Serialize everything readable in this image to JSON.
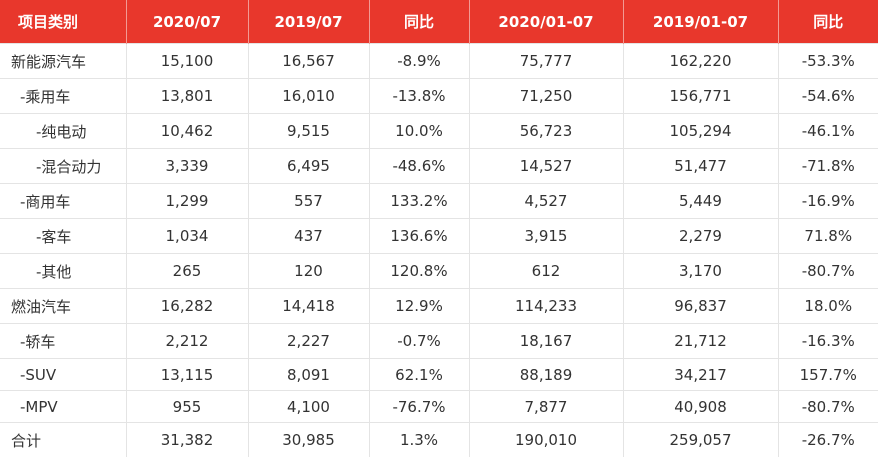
{
  "header": {
    "col0": "项目类别",
    "col1": "2020/07",
    "col2": "2019/07",
    "col3": "同比",
    "col4": "2020/01-07",
    "col5": "2019/01-07",
    "col6": "同比"
  },
  "rows": [
    {
      "label": "新能源汽车",
      "v1": "15,100",
      "v2": "16,567",
      "v3": "-8.9%",
      "v4": "75,777",
      "v5": "162,220",
      "v6": "-53.3%"
    },
    {
      "label": "-乘用车",
      "v1": "13,801",
      "v2": "16,010",
      "v3": "-13.8%",
      "v4": "71,250",
      "v5": "156,771",
      "v6": "-54.6%"
    },
    {
      "label": "-纯电动",
      "v1": "10,462",
      "v2": "9,515",
      "v3": "10.0%",
      "v4": "56,723",
      "v5": "105,294",
      "v6": "-46.1%"
    },
    {
      "label": "-混合动力",
      "v1": "3,339",
      "v2": "6,495",
      "v3": "-48.6%",
      "v4": "14,527",
      "v5": "51,477",
      "v6": "-71.8%"
    },
    {
      "label": "-商用车",
      "v1": "1,299",
      "v2": "557",
      "v3": "133.2%",
      "v4": "4,527",
      "v5": "5,449",
      "v6": "-16.9%"
    },
    {
      "label": "-客车",
      "v1": "1,034",
      "v2": "437",
      "v3": "136.6%",
      "v4": "3,915",
      "v5": "2,279",
      "v6": "71.8%"
    },
    {
      "label": "-其他",
      "v1": "265",
      "v2": "120",
      "v3": "120.8%",
      "v4": "612",
      "v5": "3,170",
      "v6": "-80.7%"
    },
    {
      "label": "燃油汽车",
      "v1": "16,282",
      "v2": "14,418",
      "v3": "12.9%",
      "v4": "114,233",
      "v5": "96,837",
      "v6": "18.0%"
    },
    {
      "label": "-轿车",
      "v1": "2,212",
      "v2": "2,227",
      "v3": "-0.7%",
      "v4": "18,167",
      "v5": "21,712",
      "v6": "-16.3%"
    },
    {
      "label": "-SUV",
      "v1": "13,115",
      "v2": "8,091",
      "v3": "62.1%",
      "v4": "88,189",
      "v5": "34,217",
      "v6": "157.7%"
    },
    {
      "label": "-MPV",
      "v1": "955",
      "v2": "4,100",
      "v3": "-76.7%",
      "v4": "7,877",
      "v5": "40,908",
      "v6": "-80.7%"
    },
    {
      "label": "合计",
      "v1": "31,382",
      "v2": "30,985",
      "v3": "1.3%",
      "v4": "190,010",
      "v5": "259,057",
      "v6": "-26.7%"
    }
  ]
}
